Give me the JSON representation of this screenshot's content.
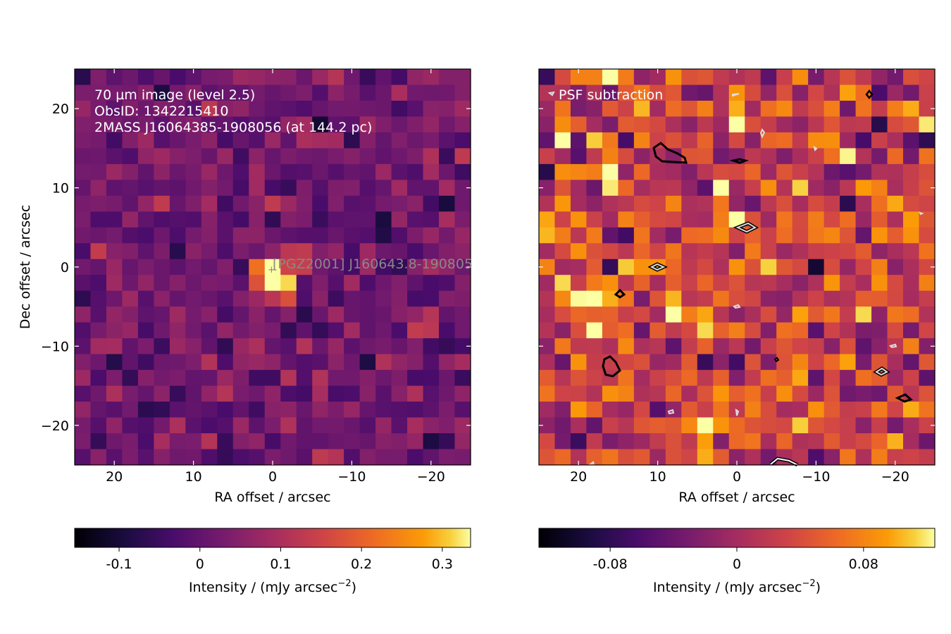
{
  "figure": {
    "panels": [
      {
        "id": "left",
        "colormap": "inferno",
        "vmin": -0.155,
        "vmax": 0.335,
        "xlabel": "RA offset / arcsec",
        "ylabel": "Dec offset / arcsec",
        "xlim": [
          25,
          -25
        ],
        "ylim": [
          -25,
          25
        ],
        "xticks": [
          "20",
          "10",
          "0",
          "−10",
          "−20"
        ],
        "yticks": [
          "20",
          "10",
          "0",
          "−10",
          "−20"
        ],
        "annotations": [
          "70 µm image (level 2.5)",
          "ObsID: 1342215410",
          "2MASS J16064385-1908056 (at 144.2 pc)"
        ],
        "source_label": "[PGZ2001] J160643.8-190805",
        "colorbar": {
          "label_main": "Intensity / (mJy arcsec",
          "label_sup": "−2",
          "label_end": ")",
          "ticks": [
            "-0.1",
            "0",
            "0.1",
            "0.2",
            "0.3"
          ],
          "tick_values": [
            -0.1,
            0,
            0.1,
            0.2,
            0.3
          ]
        }
      },
      {
        "id": "right",
        "colormap": "inferno",
        "vmin": -0.125,
        "vmax": 0.125,
        "xlabel": "RA offset / arcsec",
        "xlim": [
          25,
          -25
        ],
        "ylim": [
          -25,
          25
        ],
        "xticks": [
          "20",
          "10",
          "0",
          "−10",
          "−20"
        ],
        "annotations": [
          "PSF subtraction"
        ],
        "colorbar": {
          "label_main": "Intensity / (mJy arcsec",
          "label_sup": "−2",
          "label_end": ")",
          "ticks": [
            "-0.08",
            "0",
            "0.08"
          ],
          "tick_values": [
            -0.08,
            0,
            0.08
          ]
        }
      }
    ]
  },
  "chart_data": [
    {
      "type": "heatmap",
      "title": "",
      "xlabel": "RA offset / arcsec",
      "ylabel": "Dec offset / arcsec",
      "x_range": [
        25,
        -25
      ],
      "y_range": [
        -25,
        25
      ],
      "grid": false,
      "pixel_scale_arcsec": 2.0,
      "peak": {
        "ra_offset": 0.5,
        "dec_offset": 0.0,
        "intensity": 0.33
      },
      "annotations": [
        "70 µm image (level 2.5)",
        "ObsID: 1342215410",
        "2MASS J16064385-1908056 (at 144.2 pc)",
        "[PGZ2001] J160643.8-190805"
      ],
      "colorbar_range": [
        -0.155,
        0.335
      ],
      "colorbar_label": "Intensity / (mJy arcsec−2)"
    },
    {
      "type": "heatmap",
      "title": "",
      "xlabel": "RA offset / arcsec",
      "x_range": [
        25,
        -25
      ],
      "y_range": [
        -25,
        25
      ],
      "grid": false,
      "pixel_scale_arcsec": 2.0,
      "annotations": [
        "PSF subtraction"
      ],
      "colorbar_range": [
        -0.125,
        0.125
      ],
      "colorbar_label": "Intensity / (mJy arcsec−2)"
    }
  ]
}
